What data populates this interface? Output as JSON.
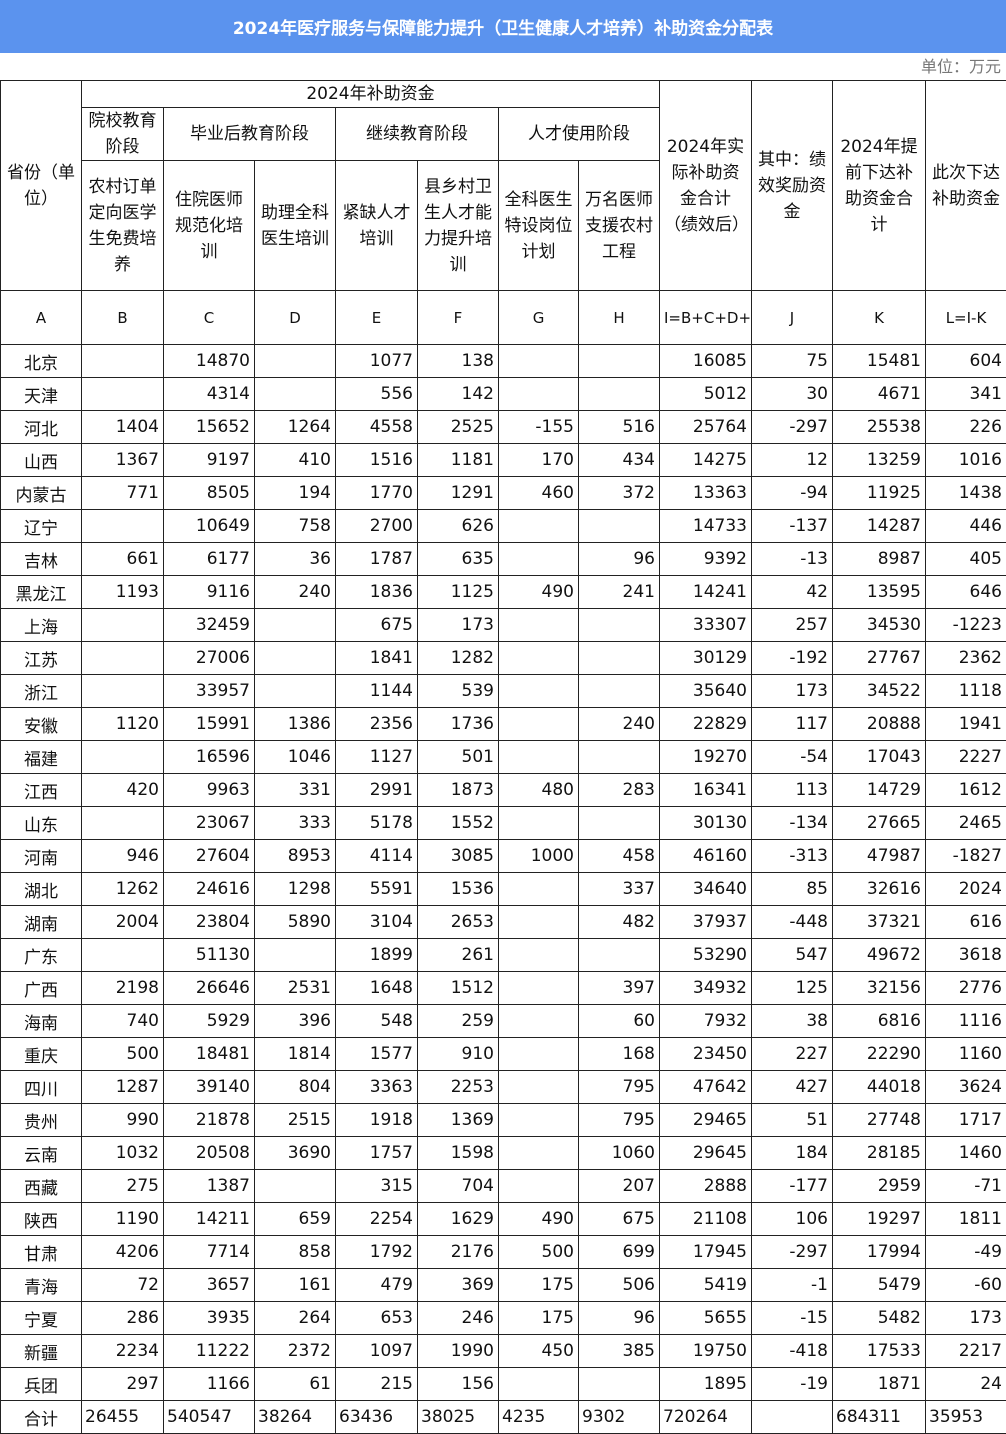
{
  "title": "2024年医疗服务与保障能力提升（卫生健康人才培养）补助资金分配表",
  "unit": "单位：万元",
  "header": {
    "province": "省份（单位）",
    "group_2024": "2024年补助资金",
    "stage_school": "院校教育阶段",
    "stage_post": "毕业后教育阶段",
    "stage_continue": "继续教育阶段",
    "stage_use": "人才使用阶段",
    "col_B": "农村订单定向医学生免费培养",
    "col_C": "住院医师规范化培训",
    "col_D": "助理全科医生培训",
    "col_E": "紧缺人才培训",
    "col_F": "县乡村卫生人才能力提升培训",
    "col_G": "全科医生特设岗位计划",
    "col_H": "万名医师支援农村工程",
    "col_I": "2024年实际补助资金合计（绩效后）",
    "col_J": "其中：绩效奖励资金",
    "col_K": "2024年提前下达补助资金合计",
    "col_L": "此次下达补助资金",
    "letters": [
      "A",
      "B",
      "C",
      "D",
      "E",
      "F",
      "G",
      "H",
      "I=B+C+D+E+F+G+H",
      "J",
      "K",
      "L=I-K"
    ]
  },
  "rows": [
    [
      "北京",
      "",
      "14870",
      "",
      "1077",
      "138",
      "",
      "",
      "16085",
      "75",
      "15481",
      "604"
    ],
    [
      "天津",
      "",
      "4314",
      "",
      "556",
      "142",
      "",
      "",
      "5012",
      "30",
      "4671",
      "341"
    ],
    [
      "河北",
      "1404",
      "15652",
      "1264",
      "4558",
      "2525",
      "-155",
      "516",
      "25764",
      "-297",
      "25538",
      "226"
    ],
    [
      "山西",
      "1367",
      "9197",
      "410",
      "1516",
      "1181",
      "170",
      "434",
      "14275",
      "12",
      "13259",
      "1016"
    ],
    [
      "内蒙古",
      "771",
      "8505",
      "194",
      "1770",
      "1291",
      "460",
      "372",
      "13363",
      "-94",
      "11925",
      "1438"
    ],
    [
      "辽宁",
      "",
      "10649",
      "758",
      "2700",
      "626",
      "",
      "",
      "14733",
      "-137",
      "14287",
      "446"
    ],
    [
      "吉林",
      "661",
      "6177",
      "36",
      "1787",
      "635",
      "",
      "96",
      "9392",
      "-13",
      "8987",
      "405"
    ],
    [
      "黑龙江",
      "1193",
      "9116",
      "240",
      "1836",
      "1125",
      "490",
      "241",
      "14241",
      "42",
      "13595",
      "646"
    ],
    [
      "上海",
      "",
      "32459",
      "",
      "675",
      "173",
      "",
      "",
      "33307",
      "257",
      "34530",
      "-1223"
    ],
    [
      "江苏",
      "",
      "27006",
      "",
      "1841",
      "1282",
      "",
      "",
      "30129",
      "-192",
      "27767",
      "2362"
    ],
    [
      "浙江",
      "",
      "33957",
      "",
      "1144",
      "539",
      "",
      "",
      "35640",
      "173",
      "34522",
      "1118"
    ],
    [
      "安徽",
      "1120",
      "15991",
      "1386",
      "2356",
      "1736",
      "",
      "240",
      "22829",
      "117",
      "20888",
      "1941"
    ],
    [
      "福建",
      "",
      "16596",
      "1046",
      "1127",
      "501",
      "",
      "",
      "19270",
      "-54",
      "17043",
      "2227"
    ],
    [
      "江西",
      "420",
      "9963",
      "331",
      "2991",
      "1873",
      "480",
      "283",
      "16341",
      "113",
      "14729",
      "1612"
    ],
    [
      "山东",
      "",
      "23067",
      "333",
      "5178",
      "1552",
      "",
      "",
      "30130",
      "-134",
      "27665",
      "2465"
    ],
    [
      "河南",
      "946",
      "27604",
      "8953",
      "4114",
      "3085",
      "1000",
      "458",
      "46160",
      "-313",
      "47987",
      "-1827"
    ],
    [
      "湖北",
      "1262",
      "24616",
      "1298",
      "5591",
      "1536",
      "",
      "337",
      "34640",
      "85",
      "32616",
      "2024"
    ],
    [
      "湖南",
      "2004",
      "23804",
      "5890",
      "3104",
      "2653",
      "",
      "482",
      "37937",
      "-448",
      "37321",
      "616"
    ],
    [
      "广东",
      "",
      "51130",
      "",
      "1899",
      "261",
      "",
      "",
      "53290",
      "547",
      "49672",
      "3618"
    ],
    [
      "广西",
      "2198",
      "26646",
      "2531",
      "1648",
      "1512",
      "",
      "397",
      "34932",
      "125",
      "32156",
      "2776"
    ],
    [
      "海南",
      "740",
      "5929",
      "396",
      "548",
      "259",
      "",
      "60",
      "7932",
      "38",
      "6816",
      "1116"
    ],
    [
      "重庆",
      "500",
      "18481",
      "1814",
      "1577",
      "910",
      "",
      "168",
      "23450",
      "227",
      "22290",
      "1160"
    ],
    [
      "四川",
      "1287",
      "39140",
      "804",
      "3363",
      "2253",
      "",
      "795",
      "47642",
      "427",
      "44018",
      "3624"
    ],
    [
      "贵州",
      "990",
      "21878",
      "2515",
      "1918",
      "1369",
      "",
      "795",
      "29465",
      "51",
      "27748",
      "1717"
    ],
    [
      "云南",
      "1032",
      "20508",
      "3690",
      "1757",
      "1598",
      "",
      "1060",
      "29645",
      "184",
      "28185",
      "1460"
    ],
    [
      "西藏",
      "275",
      "1387",
      "",
      "315",
      "704",
      "",
      "207",
      "2888",
      "-177",
      "2959",
      "-71"
    ],
    [
      "陕西",
      "1190",
      "14211",
      "659",
      "2254",
      "1629",
      "490",
      "675",
      "21108",
      "106",
      "19297",
      "1811"
    ],
    [
      "甘肃",
      "4206",
      "7714",
      "858",
      "1792",
      "2176",
      "500",
      "699",
      "17945",
      "-297",
      "17994",
      "-49"
    ],
    [
      "青海",
      "72",
      "3657",
      "161",
      "479",
      "369",
      "175",
      "506",
      "5419",
      "-1",
      "5479",
      "-60"
    ],
    [
      "宁夏",
      "286",
      "3935",
      "264",
      "653",
      "246",
      "175",
      "96",
      "5655",
      "-15",
      "5482",
      "173"
    ],
    [
      "新疆",
      "2234",
      "11222",
      "2372",
      "1097",
      "1990",
      "450",
      "385",
      "19750",
      "-418",
      "17533",
      "2217"
    ],
    [
      "兵团",
      "297",
      "1166",
      "61",
      "215",
      "156",
      "",
      "",
      "1895",
      "-19",
      "1871",
      "24"
    ]
  ],
  "total": [
    "合计",
    "26455",
    "540547",
    "38264",
    "63436",
    "38025",
    "4235",
    "9302",
    "720264",
    "",
    "684311",
    "35953"
  ],
  "colors": {
    "title_bar": "#5b93ee",
    "title_text": "#ffffff",
    "unit_text": "#777777"
  }
}
